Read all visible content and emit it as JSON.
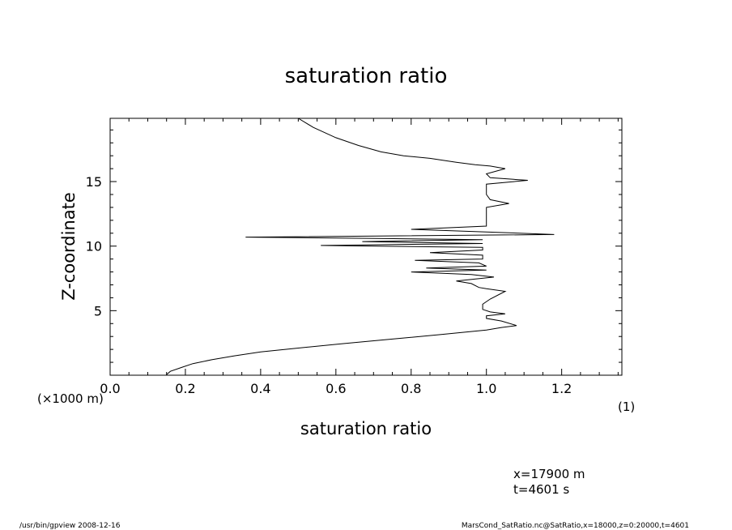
{
  "chart_data": {
    "type": "line",
    "title": "saturation ratio",
    "xlabel": "saturation ratio",
    "ylabel": "Z-coordinate",
    "x_unit_label": "(1)",
    "y_unit_label": "(×1000 m)",
    "xlim": [
      0.0,
      1.36
    ],
    "ylim": [
      0.0,
      19.9
    ],
    "x_ticks": [
      0.0,
      0.2,
      0.4,
      0.6,
      0.8,
      1.0,
      1.2
    ],
    "x_tick_labels": [
      "0.0",
      "0.2",
      "0.4",
      "0.6",
      "0.8",
      "1.0",
      "1.2"
    ],
    "y_ticks": [
      5,
      10,
      15
    ],
    "y_tick_labels": [
      "5",
      "10",
      "15"
    ],
    "grid": false,
    "series": [
      {
        "name": "",
        "points": [
          [
            0.15,
            0.05
          ],
          [
            0.16,
            0.3
          ],
          [
            0.19,
            0.6
          ],
          [
            0.22,
            0.9
          ],
          [
            0.27,
            1.2
          ],
          [
            0.33,
            1.5
          ],
          [
            0.4,
            1.8
          ],
          [
            0.5,
            2.1
          ],
          [
            0.62,
            2.45
          ],
          [
            0.75,
            2.8
          ],
          [
            0.88,
            3.15
          ],
          [
            1.0,
            3.5
          ],
          [
            1.04,
            3.7
          ],
          [
            1.08,
            3.85
          ],
          [
            1.04,
            4.2
          ],
          [
            1.0,
            4.4
          ],
          [
            1.0,
            4.6
          ],
          [
            1.05,
            4.75
          ],
          [
            1.01,
            4.9
          ],
          [
            0.99,
            5.1
          ],
          [
            0.99,
            5.5
          ],
          [
            1.01,
            5.9
          ],
          [
            1.05,
            6.5
          ],
          [
            1.0,
            6.7
          ],
          [
            0.98,
            6.8
          ],
          [
            0.96,
            7.1
          ],
          [
            0.92,
            7.3
          ],
          [
            1.02,
            7.6
          ],
          [
            0.96,
            7.8
          ],
          [
            0.8,
            8.0
          ],
          [
            1.0,
            8.15
          ],
          [
            0.84,
            8.3
          ],
          [
            1.0,
            8.45
          ],
          [
            0.98,
            8.7
          ],
          [
            0.81,
            8.9
          ],
          [
            0.99,
            9.0
          ],
          [
            0.99,
            9.3
          ],
          [
            0.85,
            9.5
          ],
          [
            0.99,
            9.7
          ],
          [
            0.99,
            9.9
          ],
          [
            0.56,
            10.05
          ],
          [
            0.99,
            10.2
          ],
          [
            0.67,
            10.35
          ],
          [
            0.99,
            10.5
          ],
          [
            0.36,
            10.7
          ],
          [
            1.18,
            10.9
          ],
          [
            1.0,
            11.1
          ],
          [
            0.8,
            11.3
          ],
          [
            0.92,
            11.45
          ],
          [
            1.0,
            11.55
          ],
          [
            1.0,
            11.9
          ],
          [
            1.0,
            12.5
          ],
          [
            1.0,
            13.0
          ],
          [
            1.06,
            13.3
          ],
          [
            1.01,
            13.6
          ],
          [
            1.0,
            14.0
          ],
          [
            1.0,
            14.4
          ],
          [
            1.0,
            14.8
          ],
          [
            1.11,
            15.1
          ],
          [
            1.01,
            15.3
          ],
          [
            1.0,
            15.6
          ],
          [
            1.05,
            16.0
          ],
          [
            1.01,
            16.2
          ],
          [
            0.97,
            16.3
          ],
          [
            0.92,
            16.5
          ],
          [
            0.85,
            16.8
          ],
          [
            0.78,
            17.0
          ],
          [
            0.72,
            17.3
          ],
          [
            0.66,
            17.8
          ],
          [
            0.6,
            18.4
          ],
          [
            0.54,
            19.2
          ],
          [
            0.5,
            19.9
          ]
        ]
      }
    ]
  },
  "info": {
    "x_position": "x=17900  m",
    "time": "t=4601  s",
    "footer_left": "/usr/bin/gpview   2008-12-16",
    "footer_right": "MarsCond_SatRatio.nc@SatRatio,x=18000,z=0:20000,t=4601"
  }
}
